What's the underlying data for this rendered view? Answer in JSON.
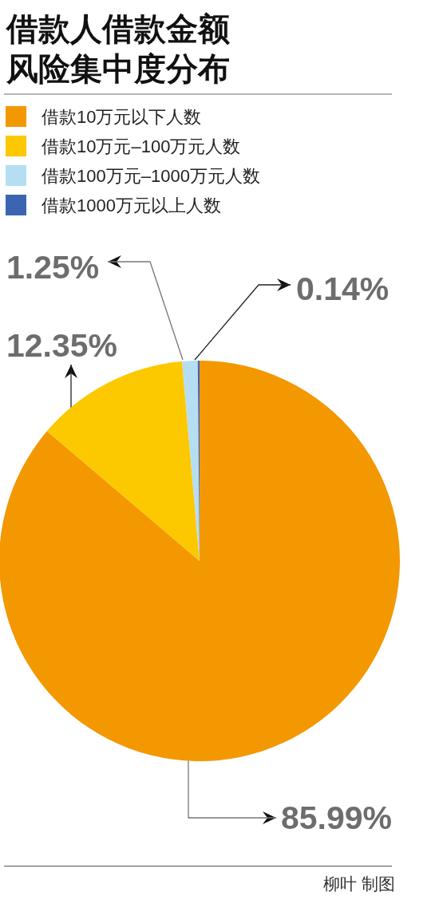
{
  "chart_data": {
    "type": "pie",
    "title": "借款人借款金额风险集中度分布",
    "categories": [
      "借款10万元以下人数",
      "借款10万元–100万元人数",
      "借款100万元–1000万元人数",
      "借款1000万元以上人数"
    ],
    "values": [
      85.99,
      12.35,
      1.25,
      0.14
    ],
    "colors": [
      "#f39800",
      "#fcc800",
      "#b5def2",
      "#3c64b1"
    ],
    "value_labels": [
      "85.99%",
      "12.35%",
      "1.25%",
      "0.14%"
    ],
    "legend": "top left",
    "annotations": [
      "柳叶 制图"
    ]
  }
}
